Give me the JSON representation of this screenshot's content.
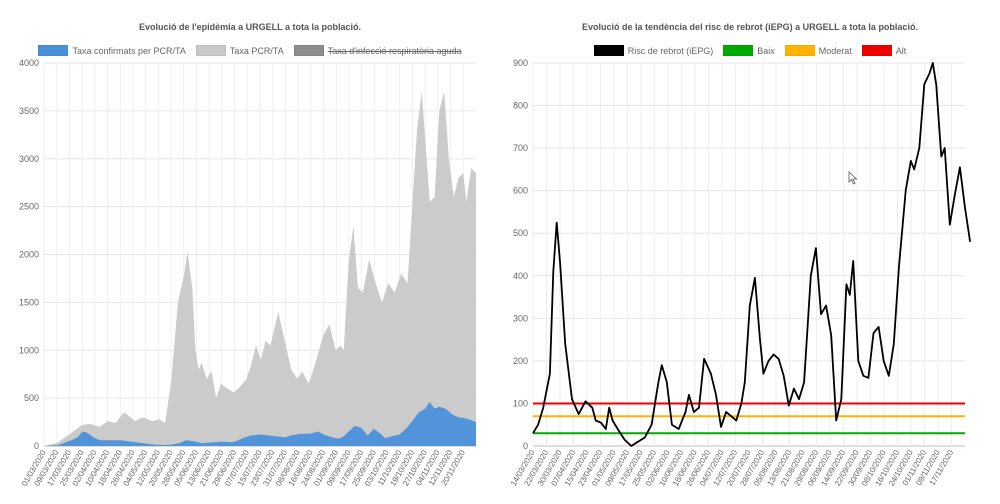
{
  "chart_data": [
    {
      "type": "area",
      "title": "Evolució de l'epidèmia a URGELL a tota la població.",
      "xlabel": "",
      "ylabel": "",
      "ylim": [
        0,
        4000
      ],
      "y_ticks": [
        0,
        500,
        1000,
        1500,
        2000,
        2500,
        3000,
        3500,
        4000
      ],
      "grid": true,
      "legend_position": "top",
      "x_start": "2020-03-01",
      "x_end": "2020-11-27",
      "x_tick_labels": [
        "01/03/2020",
        "09/03/2020",
        "17/03/2020",
        "25/03/2020",
        "02/04/2020",
        "10/04/2020",
        "18/04/2020",
        "26/04/2020",
        "04/05/2020",
        "12/05/2020",
        "20/05/2020",
        "28/05/2020",
        "05/06/2020",
        "13/06/2020",
        "21/06/2020",
        "29/06/2020",
        "07/07/2020",
        "15/07/2020",
        "23/07/2020",
        "31/07/2020",
        "08/08/2020",
        "16/08/2020",
        "24/08/2020",
        "01/09/2020",
        "09/09/2020",
        "17/09/2020",
        "25/09/2020",
        "03/10/2020",
        "11/10/2020",
        "19/10/2020",
        "27/10/2020",
        "04/11/2020",
        "12/11/2020",
        "20/11/2020"
      ],
      "series": [
        {
          "name": "Taxa confirmats per PCR/TA",
          "color": "#4a90d9",
          "points": [
            [
              "2020-03-01",
              0
            ],
            [
              "2020-03-10",
              10
            ],
            [
              "2020-03-18",
              60
            ],
            [
              "2020-03-22",
              90
            ],
            [
              "2020-03-25",
              150
            ],
            [
              "2020-03-28",
              140
            ],
            [
              "2020-04-01",
              90
            ],
            [
              "2020-04-05",
              60
            ],
            [
              "2020-04-10",
              60
            ],
            [
              "2020-04-18",
              60
            ],
            [
              "2020-04-25",
              45
            ],
            [
              "2020-05-02",
              30
            ],
            [
              "2020-05-10",
              15
            ],
            [
              "2020-05-15",
              10
            ],
            [
              "2020-05-20",
              15
            ],
            [
              "2020-05-25",
              30
            ],
            [
              "2020-05-29",
              60
            ],
            [
              "2020-06-03",
              50
            ],
            [
              "2020-06-08",
              30
            ],
            [
              "2020-06-15",
              40
            ],
            [
              "2020-06-20",
              45
            ],
            [
              "2020-06-27",
              40
            ],
            [
              "2020-07-01",
              60
            ],
            [
              "2020-07-05",
              90
            ],
            [
              "2020-07-09",
              110
            ],
            [
              "2020-07-15",
              120
            ],
            [
              "2020-07-20",
              110
            ],
            [
              "2020-07-25",
              100
            ],
            [
              "2020-07-30",
              90
            ],
            [
              "2020-08-03",
              110
            ],
            [
              "2020-08-08",
              125
            ],
            [
              "2020-08-15",
              130
            ],
            [
              "2020-08-20",
              150
            ],
            [
              "2020-08-24",
              115
            ],
            [
              "2020-08-29",
              90
            ],
            [
              "2020-09-02",
              75
            ],
            [
              "2020-09-05",
              100
            ],
            [
              "2020-09-08",
              150
            ],
            [
              "2020-09-12",
              210
            ],
            [
              "2020-09-16",
              190
            ],
            [
              "2020-09-20",
              110
            ],
            [
              "2020-09-24",
              180
            ],
            [
              "2020-09-28",
              130
            ],
            [
              "2020-10-01",
              80
            ],
            [
              "2020-10-05",
              100
            ],
            [
              "2020-10-10",
              120
            ],
            [
              "2020-10-14",
              180
            ],
            [
              "2020-10-18",
              260
            ],
            [
              "2020-10-22",
              350
            ],
            [
              "2020-10-26",
              390
            ],
            [
              "2020-10-29",
              460
            ],
            [
              "2020-11-01",
              390
            ],
            [
              "2020-11-04",
              410
            ],
            [
              "2020-11-08",
              390
            ],
            [
              "2020-11-12",
              330
            ],
            [
              "2020-11-16",
              300
            ],
            [
              "2020-11-20",
              290
            ],
            [
              "2020-11-24",
              270
            ],
            [
              "2020-11-27",
              250
            ]
          ]
        },
        {
          "name": "Taxa PCR/TA",
          "color": "#c8c8c8",
          "points": [
            [
              "2020-03-01",
              0
            ],
            [
              "2020-03-09",
              30
            ],
            [
              "2020-03-15",
              100
            ],
            [
              "2020-03-20",
              160
            ],
            [
              "2020-03-25",
              220
            ],
            [
              "2020-03-30",
              230
            ],
            [
              "2020-04-05",
              200
            ],
            [
              "2020-04-10",
              260
            ],
            [
              "2020-04-15",
              240
            ],
            [
              "2020-04-20",
              350
            ],
            [
              "2020-04-22",
              330
            ],
            [
              "2020-04-27",
              260
            ],
            [
              "2020-05-02",
              300
            ],
            [
              "2020-05-08",
              260
            ],
            [
              "2020-05-12",
              280
            ],
            [
              "2020-05-16",
              240
            ],
            [
              "2020-05-20",
              700
            ],
            [
              "2020-05-24",
              1500
            ],
            [
              "2020-05-28",
              1800
            ],
            [
              "2020-05-30",
              2030
            ],
            [
              "2020-06-02",
              1650
            ],
            [
              "2020-06-04",
              1000
            ],
            [
              "2020-06-06",
              800
            ],
            [
              "2020-06-08",
              870
            ],
            [
              "2020-06-11",
              700
            ],
            [
              "2020-06-14",
              780
            ],
            [
              "2020-06-17",
              500
            ],
            [
              "2020-06-20",
              650
            ],
            [
              "2020-06-24",
              600
            ],
            [
              "2020-06-28",
              560
            ],
            [
              "2020-07-02",
              620
            ],
            [
              "2020-07-06",
              700
            ],
            [
              "2020-07-09",
              850
            ],
            [
              "2020-07-12",
              1050
            ],
            [
              "2020-07-15",
              900
            ],
            [
              "2020-07-18",
              1100
            ],
            [
              "2020-07-21",
              1050
            ],
            [
              "2020-07-26",
              1400
            ],
            [
              "2020-07-30",
              1100
            ],
            [
              "2020-08-03",
              800
            ],
            [
              "2020-08-07",
              700
            ],
            [
              "2020-08-10",
              780
            ],
            [
              "2020-08-14",
              650
            ],
            [
              "2020-08-18",
              850
            ],
            [
              "2020-08-23",
              1150
            ],
            [
              "2020-08-27",
              1270
            ],
            [
              "2020-08-31",
              1000
            ],
            [
              "2020-09-03",
              1050
            ],
            [
              "2020-09-05",
              1000
            ],
            [
              "2020-09-08",
              1900
            ],
            [
              "2020-09-11",
              2300
            ],
            [
              "2020-09-14",
              1650
            ],
            [
              "2020-09-17",
              1600
            ],
            [
              "2020-09-21",
              1950
            ],
            [
              "2020-09-25",
              1700
            ],
            [
              "2020-09-29",
              1500
            ],
            [
              "2020-10-03",
              1700
            ],
            [
              "2020-10-07",
              1600
            ],
            [
              "2020-10-11",
              1800
            ],
            [
              "2020-10-15",
              1700
            ],
            [
              "2020-10-18",
              2500
            ],
            [
              "2020-10-21",
              3300
            ],
            [
              "2020-10-24",
              3700
            ],
            [
              "2020-10-27",
              3000
            ],
            [
              "2020-10-29",
              2550
            ],
            [
              "2020-11-01",
              2600
            ],
            [
              "2020-11-04",
              3500
            ],
            [
              "2020-11-07",
              3700
            ],
            [
              "2020-11-10",
              3000
            ],
            [
              "2020-11-13",
              2600
            ],
            [
              "2020-11-16",
              2800
            ],
            [
              "2020-11-19",
              2850
            ],
            [
              "2020-11-21",
              2550
            ],
            [
              "2020-11-24",
              2900
            ],
            [
              "2020-11-27",
              2850
            ]
          ]
        },
        {
          "name": "Taxa d'infecció respiratòria aguda",
          "color": "#8c8c8c",
          "hidden": true,
          "points": []
        }
      ]
    },
    {
      "type": "line",
      "title": "Evolució de la tendència del risc de rebrot (iEPG) a URGELL a tota la població.",
      "xlabel": "",
      "ylabel": "",
      "ylim": [
        0,
        900
      ],
      "y_ticks": [
        0,
        100,
        200,
        300,
        400,
        500,
        600,
        700,
        800,
        900
      ],
      "grid": true,
      "legend_position": "top",
      "x_start": "2020-03-14",
      "x_end": "2020-11-24",
      "x_tick_labels": [
        "14/03/2020",
        "22/03/2020",
        "30/03/2020",
        "07/04/2020",
        "15/04/2020",
        "23/04/2020",
        "01/05/2020",
        "09/05/2020",
        "17/05/2020",
        "25/05/2020",
        "02/06/2020",
        "10/06/2020",
        "18/06/2020",
        "26/06/2020",
        "04/07/2020",
        "12/07/2020",
        "20/07/2020",
        "28/07/2020",
        "05/08/2020",
        "13/08/2020",
        "21/08/2020",
        "29/08/2020",
        "06/09/2020",
        "14/09/2020",
        "22/09/2020",
        "30/09/2020",
        "08/10/2020",
        "16/10/2020",
        "24/10/2020",
        "01/11/2020",
        "09/11/2020",
        "17/11/2020"
      ],
      "series": [
        {
          "name": "Risc de rebrot (iEPG)",
          "color": "#000000",
          "points": [
            [
              "2020-03-14",
              30
            ],
            [
              "2020-03-17",
              50
            ],
            [
              "2020-03-20",
              90
            ],
            [
              "2020-03-24",
              170
            ],
            [
              "2020-03-26",
              410
            ],
            [
              "2020-03-28",
              525
            ],
            [
              "2020-03-30",
              430
            ],
            [
              "2020-04-02",
              240
            ],
            [
              "2020-04-06",
              110
            ],
            [
              "2020-04-10",
              75
            ],
            [
              "2020-04-14",
              105
            ],
            [
              "2020-04-18",
              90
            ],
            [
              "2020-04-20",
              60
            ],
            [
              "2020-04-23",
              55
            ],
            [
              "2020-04-26",
              40
            ],
            [
              "2020-04-28",
              90
            ],
            [
              "2020-04-30",
              60
            ],
            [
              "2020-05-03",
              40
            ],
            [
              "2020-05-07",
              15
            ],
            [
              "2020-05-11",
              0
            ],
            [
              "2020-05-15",
              10
            ],
            [
              "2020-05-19",
              20
            ],
            [
              "2020-05-23",
              50
            ],
            [
              "2020-05-27",
              150
            ],
            [
              "2020-05-29",
              190
            ],
            [
              "2020-06-01",
              150
            ],
            [
              "2020-06-04",
              50
            ],
            [
              "2020-06-08",
              40
            ],
            [
              "2020-06-12",
              80
            ],
            [
              "2020-06-14",
              120
            ],
            [
              "2020-06-17",
              80
            ],
            [
              "2020-06-20",
              90
            ],
            [
              "2020-06-23",
              205
            ],
            [
              "2020-06-27",
              170
            ],
            [
              "2020-06-30",
              120
            ],
            [
              "2020-07-03",
              45
            ],
            [
              "2020-07-06",
              80
            ],
            [
              "2020-07-09",
              70
            ],
            [
              "2020-07-12",
              60
            ],
            [
              "2020-07-15",
              100
            ],
            [
              "2020-07-17",
              150
            ],
            [
              "2020-07-20",
              330
            ],
            [
              "2020-07-23",
              395
            ],
            [
              "2020-07-26",
              250
            ],
            [
              "2020-07-28",
              170
            ],
            [
              "2020-07-31",
              200
            ],
            [
              "2020-08-03",
              215
            ],
            [
              "2020-08-06",
              205
            ],
            [
              "2020-08-09",
              165
            ],
            [
              "2020-08-12",
              95
            ],
            [
              "2020-08-15",
              135
            ],
            [
              "2020-08-18",
              110
            ],
            [
              "2020-08-21",
              150
            ],
            [
              "2020-08-25",
              400
            ],
            [
              "2020-08-28",
              465
            ],
            [
              "2020-08-31",
              310
            ],
            [
              "2020-09-03",
              330
            ],
            [
              "2020-09-06",
              260
            ],
            [
              "2020-09-09",
              60
            ],
            [
              "2020-09-12",
              110
            ],
            [
              "2020-09-15",
              380
            ],
            [
              "2020-09-17",
              355
            ],
            [
              "2020-09-19",
              435
            ],
            [
              "2020-09-22",
              200
            ],
            [
              "2020-09-25",
              165
            ],
            [
              "2020-09-28",
              160
            ],
            [
              "2020-10-01",
              265
            ],
            [
              "2020-10-04",
              280
            ],
            [
              "2020-10-07",
              200
            ],
            [
              "2020-10-10",
              165
            ],
            [
              "2020-10-13",
              240
            ],
            [
              "2020-10-16",
              420
            ],
            [
              "2020-10-20",
              600
            ],
            [
              "2020-10-23",
              670
            ],
            [
              "2020-10-25",
              650
            ],
            [
              "2020-10-28",
              700
            ],
            [
              "2020-10-31",
              850
            ],
            [
              "2020-11-03",
              875
            ],
            [
              "2020-11-05",
              900
            ],
            [
              "2020-11-07",
              850
            ],
            [
              "2020-11-10",
              680
            ],
            [
              "2020-11-12",
              700
            ],
            [
              "2020-11-15",
              520
            ],
            [
              "2020-11-18",
              590
            ],
            [
              "2020-11-21",
              655
            ],
            [
              "2020-11-24",
              560
            ],
            [
              "2020-11-27",
              480
            ]
          ]
        },
        {
          "name": "Baix",
          "color": "#00aa00",
          "constant": 30
        },
        {
          "name": "Moderat",
          "color": "#ffb300",
          "constant": 70
        },
        {
          "name": "Alt",
          "color": "#ee0000",
          "constant": 100
        }
      ]
    }
  ]
}
